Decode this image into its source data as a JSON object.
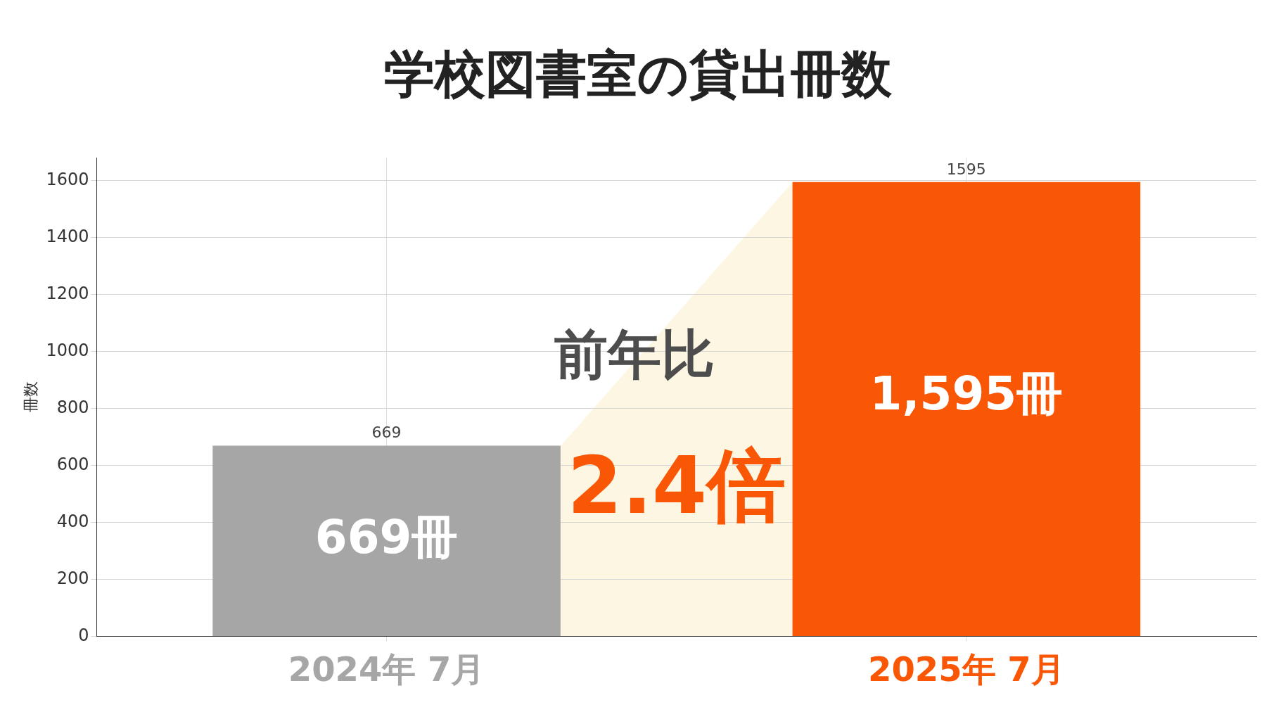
{
  "chart_data": {
    "type": "bar",
    "title": "学校図書室の貸出冊数",
    "ylabel": "冊数",
    "categories": [
      "2024年 7月",
      "2025年 7月"
    ],
    "values": [
      669,
      1595
    ],
    "colors": [
      "#a6a6a6",
      "#f95706"
    ],
    "data_labels": true,
    "ylim": [
      0,
      1680
    ],
    "yticks": [
      0,
      200,
      400,
      600,
      800,
      1000,
      1200,
      1400,
      1600
    ],
    "grid": true,
    "annotations": [
      "前年比",
      "2.4倍",
      "669冊",
      "1,595冊"
    ]
  }
}
